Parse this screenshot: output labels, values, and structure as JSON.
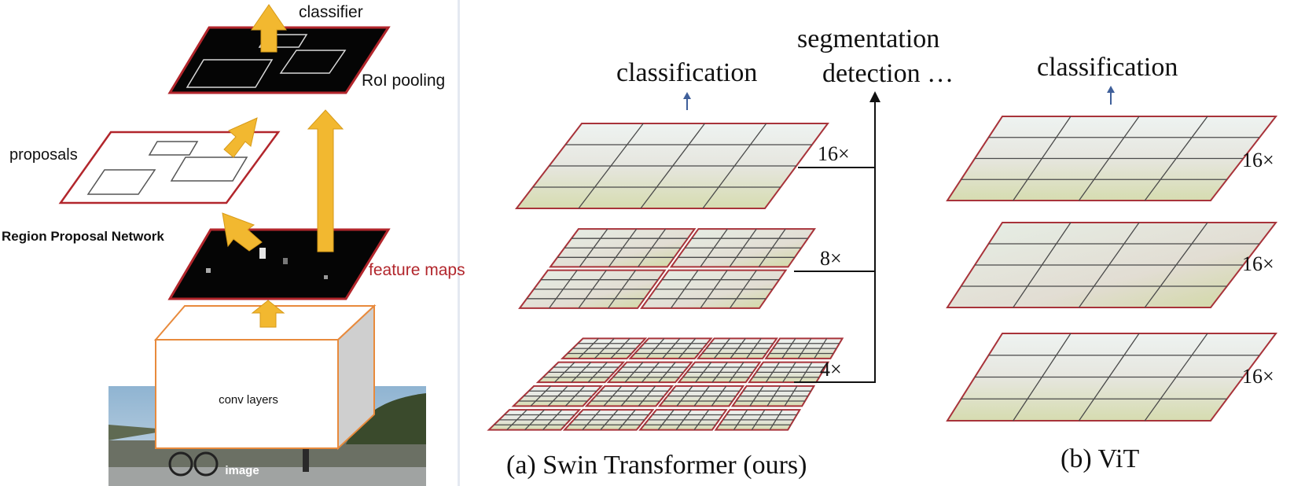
{
  "left_diagram": {
    "labels": {
      "classifier": "classifier",
      "roi_pooling": "RoI pooling",
      "proposals": "proposals",
      "rpn": "Region Proposal Network",
      "feature_maps": "feature maps",
      "conv_layers": "conv layers",
      "image": "image"
    },
    "colors": {
      "arrow": "#f2b830",
      "arrow_stroke": "#d79a18",
      "map_fill": "#050505",
      "map_border": "#b2262c",
      "conv_border": "#e88a3c",
      "feature_label": "#b2262c"
    }
  },
  "right_diagram": {
    "swin": {
      "caption": "(a) Swin Transformer (ours)",
      "top_label": "classification",
      "side_label_1": "segmentation",
      "side_label_2": "detection …",
      "scales": [
        "16×",
        "8×",
        "4×"
      ]
    },
    "vit": {
      "caption": "(b) ViT",
      "top_label": "classification",
      "scales": [
        "16×",
        "16×",
        "16×"
      ]
    },
    "colors": {
      "patch_border": "#a8333a",
      "grid_line": "#4a4a4a",
      "small_arrow": "#3f5f9a"
    }
  }
}
